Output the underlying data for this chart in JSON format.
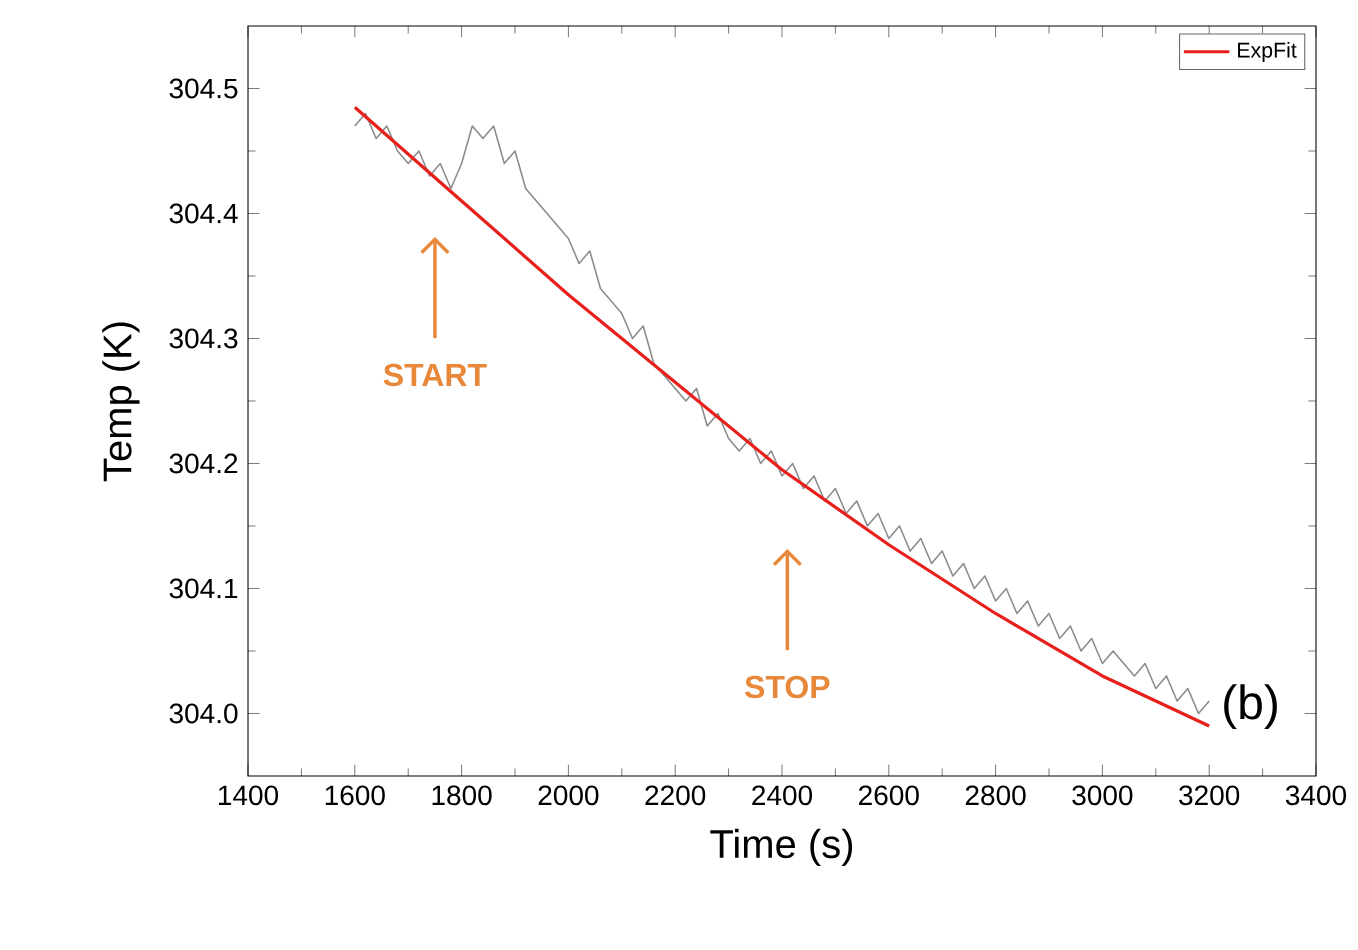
{
  "chart_data": {
    "type": "line",
    "xlabel": "Time (s)",
    "ylabel": "Temp (K)",
    "xlim": [
      1400,
      3400
    ],
    "xticks": [
      1400,
      1600,
      1800,
      2000,
      2200,
      2400,
      2600,
      2800,
      3000,
      3200,
      3400
    ],
    "ylim": [
      303.95,
      304.55
    ],
    "yticks": [
      {
        "value": 304.0,
        "label": "304.0"
      },
      304.1,
      304.2,
      304.3,
      304.4,
      304.5
    ],
    "legend": "top right",
    "grid": false,
    "marker": "none",
    "line_style": "solid",
    "series": [
      {
        "color": "#8c8c8c",
        "x": [
          1600,
          1620,
          1640,
          1660,
          1680,
          1700,
          1720,
          1740,
          1760,
          1780,
          1800,
          1820,
          1840,
          1860,
          1880,
          1900,
          1920,
          1940,
          1960,
          1980,
          2000,
          2020,
          2040,
          2060,
          2080,
          2100,
          2120,
          2140,
          2160,
          2180,
          2200,
          2220,
          2240,
          2260,
          2280,
          2300,
          2320,
          2340,
          2360,
          2380,
          2400,
          2420,
          2440,
          2460,
          2480,
          2500,
          2520,
          2540,
          2560,
          2580,
          2600,
          2620,
          2640,
          2660,
          2680,
          2700,
          2720,
          2740,
          2760,
          2780,
          2800,
          2820,
          2840,
          2860,
          2880,
          2900,
          2920,
          2940,
          2960,
          2980,
          3000,
          3020,
          3040,
          3060,
          3080,
          3100,
          3120,
          3140,
          3160,
          3180,
          3200
        ],
        "values": [
          304.47,
          304.48,
          304.46,
          304.47,
          304.45,
          304.44,
          304.45,
          304.43,
          304.44,
          304.42,
          304.44,
          304.47,
          304.46,
          304.47,
          304.44,
          304.45,
          304.42,
          304.41,
          304.4,
          304.39,
          304.38,
          304.36,
          304.37,
          304.34,
          304.33,
          304.32,
          304.3,
          304.31,
          304.28,
          304.27,
          304.26,
          304.25,
          304.26,
          304.23,
          304.24,
          304.22,
          304.21,
          304.22,
          304.2,
          304.21,
          304.19,
          304.2,
          304.18,
          304.19,
          304.17,
          304.18,
          304.16,
          304.17,
          304.15,
          304.16,
          304.14,
          304.15,
          304.13,
          304.14,
          304.12,
          304.13,
          304.11,
          304.12,
          304.1,
          304.11,
          304.09,
          304.1,
          304.08,
          304.09,
          304.07,
          304.08,
          304.06,
          304.07,
          304.05,
          304.06,
          304.04,
          304.05,
          304.04,
          304.03,
          304.04,
          304.02,
          304.03,
          304.01,
          304.02,
          304.0,
          304.01
        ]
      },
      {
        "name": "ExpFit",
        "color": "#e8201c",
        "x": [
          1600,
          1800,
          2000,
          2200,
          2400,
          2600,
          2800,
          3000,
          3200
        ],
        "values": [
          304.485,
          304.41,
          304.335,
          304.265,
          304.195,
          304.135,
          304.08,
          304.03,
          303.99
        ]
      }
    ],
    "annotations": [
      "START",
      "STOP",
      "(b)"
    ]
  }
}
